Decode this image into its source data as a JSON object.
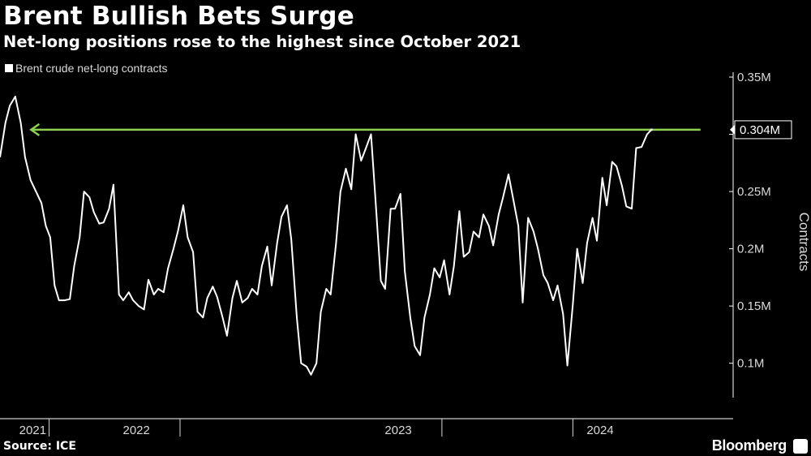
{
  "title": "Brent Bullish Bets Surge",
  "subtitle": "Net-long positions rose to the highest since October 2021",
  "source": "Source: ICE",
  "brand": "Bloomberg",
  "chart_data": {
    "type": "line",
    "title": "Brent Bullish Bets Surge",
    "ylabel": "Contracts",
    "ylim": [
      0.07,
      0.35
    ],
    "yticks": [
      0.1,
      0.15,
      0.2,
      0.25,
      0.3,
      0.35
    ],
    "ytick_labels": [
      "0.1M",
      "0.15M",
      "0.2M",
      "0.25M",
      "0.3M",
      "0.35M"
    ],
    "year_labels": [
      "2021",
      "2022",
      "2023",
      "2024"
    ],
    "year_label_months": [
      11.5,
      21,
      45,
      63.5
    ],
    "year_boundaries": [
      13,
      25,
      49,
      61
    ],
    "x_start_month": 8.5,
    "x_end_month": 74.5,
    "annotation": {
      "label": "0.304M",
      "value": 0.304,
      "from_month": 11.2,
      "to_month": 72.7
    },
    "colors": {
      "line": "#ffffff",
      "annotation": "#8fd14f",
      "axis": "#ffffff",
      "muted": "#d9d9d9"
    },
    "series": [
      {
        "name": "Brent crude net-long contracts",
        "points": [
          [
            8.5,
            0.28
          ],
          [
            9.0,
            0.31
          ],
          [
            9.4,
            0.325
          ],
          [
            9.9,
            0.333
          ],
          [
            10.4,
            0.31
          ],
          [
            10.8,
            0.28
          ],
          [
            11.3,
            0.26
          ],
          [
            11.8,
            0.25
          ],
          [
            12.3,
            0.24
          ],
          [
            12.7,
            0.22
          ],
          [
            13.1,
            0.21
          ],
          [
            13.5,
            0.168
          ],
          [
            13.9,
            0.155
          ],
          [
            14.4,
            0.155
          ],
          [
            14.9,
            0.156
          ],
          [
            15.3,
            0.185
          ],
          [
            15.8,
            0.21
          ],
          [
            16.2,
            0.25
          ],
          [
            16.7,
            0.245
          ],
          [
            17.1,
            0.232
          ],
          [
            17.6,
            0.222
          ],
          [
            18.0,
            0.223
          ],
          [
            18.5,
            0.235
          ],
          [
            18.9,
            0.256
          ],
          [
            19.4,
            0.16
          ],
          [
            19.8,
            0.155
          ],
          [
            20.3,
            0.162
          ],
          [
            20.7,
            0.155
          ],
          [
            21.2,
            0.15
          ],
          [
            21.7,
            0.147
          ],
          [
            22.1,
            0.173
          ],
          [
            22.6,
            0.16
          ],
          [
            23.0,
            0.165
          ],
          [
            23.5,
            0.162
          ],
          [
            23.9,
            0.183
          ],
          [
            24.4,
            0.2
          ],
          [
            24.8,
            0.215
          ],
          [
            25.3,
            0.238
          ],
          [
            25.7,
            0.21
          ],
          [
            26.2,
            0.197
          ],
          [
            26.6,
            0.145
          ],
          [
            27.1,
            0.14
          ],
          [
            27.5,
            0.157
          ],
          [
            28.0,
            0.167
          ],
          [
            28.4,
            0.158
          ],
          [
            28.9,
            0.14
          ],
          [
            29.3,
            0.124
          ],
          [
            29.8,
            0.157
          ],
          [
            30.2,
            0.172
          ],
          [
            30.7,
            0.153
          ],
          [
            31.2,
            0.157
          ],
          [
            31.6,
            0.165
          ],
          [
            32.1,
            0.16
          ],
          [
            32.5,
            0.185
          ],
          [
            33.0,
            0.202
          ],
          [
            33.4,
            0.168
          ],
          [
            33.9,
            0.205
          ],
          [
            34.3,
            0.228
          ],
          [
            34.8,
            0.238
          ],
          [
            35.2,
            0.208
          ],
          [
            35.7,
            0.14
          ],
          [
            36.1,
            0.1
          ],
          [
            36.6,
            0.097
          ],
          [
            37.0,
            0.09
          ],
          [
            37.5,
            0.1
          ],
          [
            37.9,
            0.145
          ],
          [
            38.4,
            0.165
          ],
          [
            38.8,
            0.16
          ],
          [
            39.3,
            0.205
          ],
          [
            39.7,
            0.25
          ],
          [
            40.2,
            0.27
          ],
          [
            40.7,
            0.252
          ],
          [
            41.1,
            0.3
          ],
          [
            41.6,
            0.277
          ],
          [
            42.0,
            0.287
          ],
          [
            42.5,
            0.3
          ],
          [
            42.9,
            0.245
          ],
          [
            43.4,
            0.172
          ],
          [
            43.8,
            0.165
          ],
          [
            44.3,
            0.235
          ],
          [
            44.7,
            0.235
          ],
          [
            45.2,
            0.248
          ],
          [
            45.6,
            0.18
          ],
          [
            46.1,
            0.14
          ],
          [
            46.5,
            0.115
          ],
          [
            47.0,
            0.107
          ],
          [
            47.4,
            0.14
          ],
          [
            47.9,
            0.16
          ],
          [
            48.3,
            0.183
          ],
          [
            48.8,
            0.175
          ],
          [
            49.2,
            0.19
          ],
          [
            49.7,
            0.16
          ],
          [
            50.1,
            0.185
          ],
          [
            50.6,
            0.233
          ],
          [
            51.0,
            0.193
          ],
          [
            51.5,
            0.197
          ],
          [
            51.9,
            0.215
          ],
          [
            52.4,
            0.21
          ],
          [
            52.8,
            0.23
          ],
          [
            53.3,
            0.22
          ],
          [
            53.7,
            0.203
          ],
          [
            54.2,
            0.23
          ],
          [
            54.6,
            0.245
          ],
          [
            55.1,
            0.265
          ],
          [
            55.5,
            0.245
          ],
          [
            56.0,
            0.22
          ],
          [
            56.4,
            0.153
          ],
          [
            56.9,
            0.227
          ],
          [
            57.4,
            0.215
          ],
          [
            57.8,
            0.2
          ],
          [
            58.3,
            0.177
          ],
          [
            58.7,
            0.17
          ],
          [
            59.2,
            0.155
          ],
          [
            59.6,
            0.168
          ],
          [
            60.1,
            0.143
          ],
          [
            60.5,
            0.098
          ],
          [
            61.0,
            0.152
          ],
          [
            61.4,
            0.2
          ],
          [
            61.9,
            0.17
          ],
          [
            62.3,
            0.205
          ],
          [
            62.8,
            0.227
          ],
          [
            63.2,
            0.207
          ],
          [
            63.7,
            0.262
          ],
          [
            64.1,
            0.238
          ],
          [
            64.6,
            0.276
          ],
          [
            65.0,
            0.272
          ],
          [
            65.5,
            0.255
          ],
          [
            65.9,
            0.237
          ],
          [
            66.4,
            0.235
          ],
          [
            66.8,
            0.288
          ],
          [
            67.3,
            0.289
          ],
          [
            67.8,
            0.3
          ],
          [
            68.2,
            0.304
          ]
        ]
      }
    ]
  }
}
